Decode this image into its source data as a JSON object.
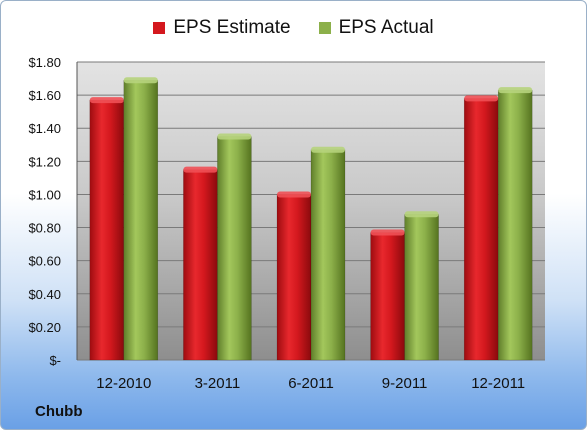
{
  "company": "Chubb",
  "colors": {
    "estimate": "#d4181e",
    "actual": "#8cb04a"
  },
  "chart_data": {
    "type": "bar",
    "categories": [
      "12-2010",
      "3-2011",
      "6-2011",
      "9-2011",
      "12-2011"
    ],
    "series": [
      {
        "name": "EPS Estimate",
        "values": [
          1.57,
          1.15,
          1.0,
          0.77,
          1.58
        ]
      },
      {
        "name": "EPS Actual",
        "values": [
          1.69,
          1.35,
          1.27,
          0.88,
          1.63
        ]
      }
    ],
    "ylim": [
      0,
      1.8
    ],
    "yticks": [
      0,
      0.2,
      0.4,
      0.6,
      0.8,
      1.0,
      1.2,
      1.4,
      1.6,
      1.8
    ],
    "ytick_labels": [
      "$-",
      "$0.20",
      "$0.40",
      "$0.60",
      "$0.80",
      "$1.00",
      "$1.20",
      "$1.40",
      "$1.60",
      "$1.80"
    ],
    "grid": true,
    "legend_position": "top-center"
  }
}
